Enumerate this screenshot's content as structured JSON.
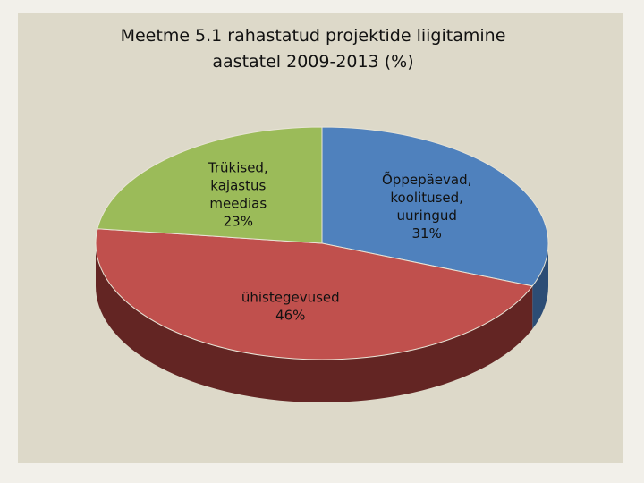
{
  "chart_data": {
    "type": "pie",
    "title_line1": "Meetme 5.1 rahastatud projektide liigitamine",
    "title_line2": "aastatel 2009-2013 (%)",
    "slices": [
      {
        "label_lines": [
          "Õppepäevad,",
          "koolitused,",
          "uuringud",
          "31%"
        ],
        "value": 31,
        "color": "#4f81bd",
        "side_color": "#2c4d75"
      },
      {
        "label_lines": [
          "ühistegevused",
          "46%"
        ],
        "value": 46,
        "color": "#c0504d",
        "side_color": "#632523"
      },
      {
        "label_lines": [
          "Trükised,",
          "kajastus",
          "meedias",
          "23%"
        ],
        "value": 23,
        "color": "#9bbb59",
        "side_color": "#5f7530"
      }
    ],
    "style": "3d-pie",
    "legend": "none"
  }
}
